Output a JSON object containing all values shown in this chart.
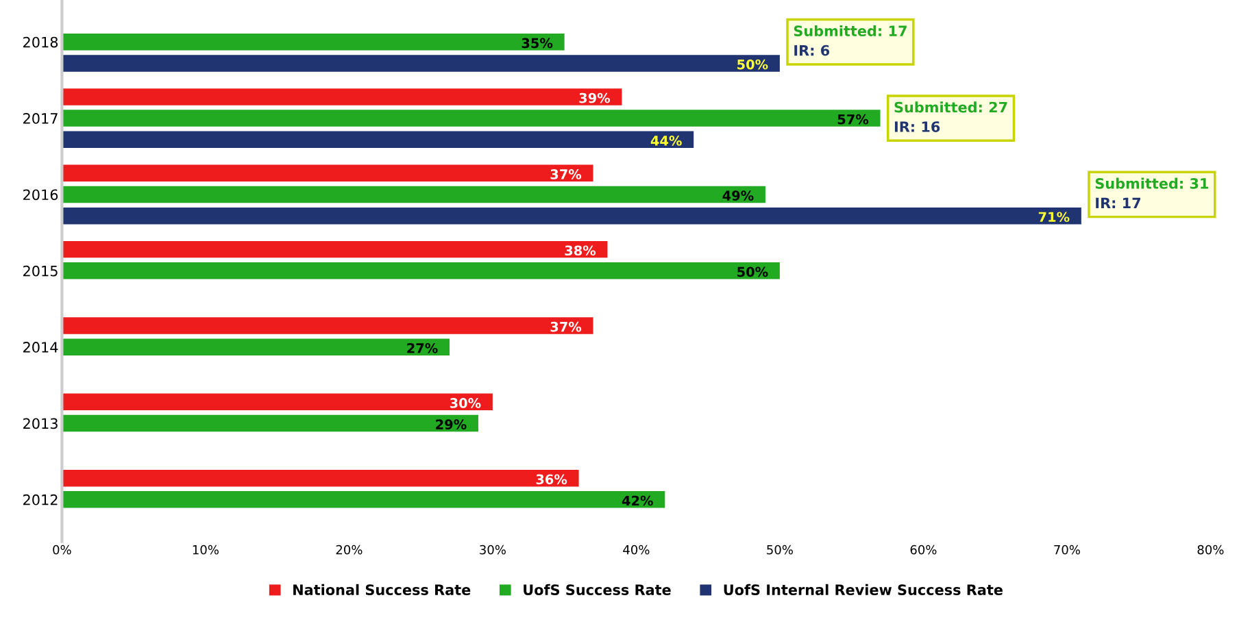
{
  "chart_data": {
    "type": "bar",
    "orientation": "horizontal",
    "categories": [
      "2018",
      "2017",
      "2016",
      "2015",
      "2014",
      "2013",
      "2012"
    ],
    "series": [
      {
        "name": "National Success Rate",
        "color": "#ee1c1c",
        "values": [
          null,
          39,
          37,
          38,
          37,
          30,
          36
        ],
        "value_labels": [
          null,
          "39%",
          "37%",
          "38%",
          "37%",
          "30%",
          "36%"
        ]
      },
      {
        "name": "UofS Success Rate",
        "color": "#22aa22",
        "values": [
          35,
          57,
          49,
          50,
          27,
          29,
          42
        ],
        "value_labels": [
          "35%",
          "57%",
          "49%",
          "50%",
          "27%",
          "29%",
          "42%"
        ]
      },
      {
        "name": "UofS Internal Review Success Rate",
        "color": "#1f3470",
        "values": [
          50,
          44,
          71,
          null,
          null,
          null,
          null
        ],
        "value_labels": [
          "50%",
          "44%",
          "71%",
          null,
          null,
          null,
          null
        ]
      }
    ],
    "xlim": [
      0,
      80
    ],
    "xticks": [
      {
        "value": 0,
        "label": "0%"
      },
      {
        "value": 10,
        "label": "10%"
      },
      {
        "value": 20,
        "label": "20%"
      },
      {
        "value": 30,
        "label": "30%"
      },
      {
        "value": 40,
        "label": "40%"
      },
      {
        "value": 50,
        "label": "50%"
      },
      {
        "value": 60,
        "label": "60%"
      },
      {
        "value": 70,
        "label": "70%"
      },
      {
        "value": 80,
        "label": "80%"
      }
    ],
    "annotations": [
      "Submitted: 17\nIR: 6",
      "Submitted: 27\nIR: 16",
      "Submitted: 31\nIR: 17"
    ],
    "grid": false,
    "legend": "bottom"
  }
}
